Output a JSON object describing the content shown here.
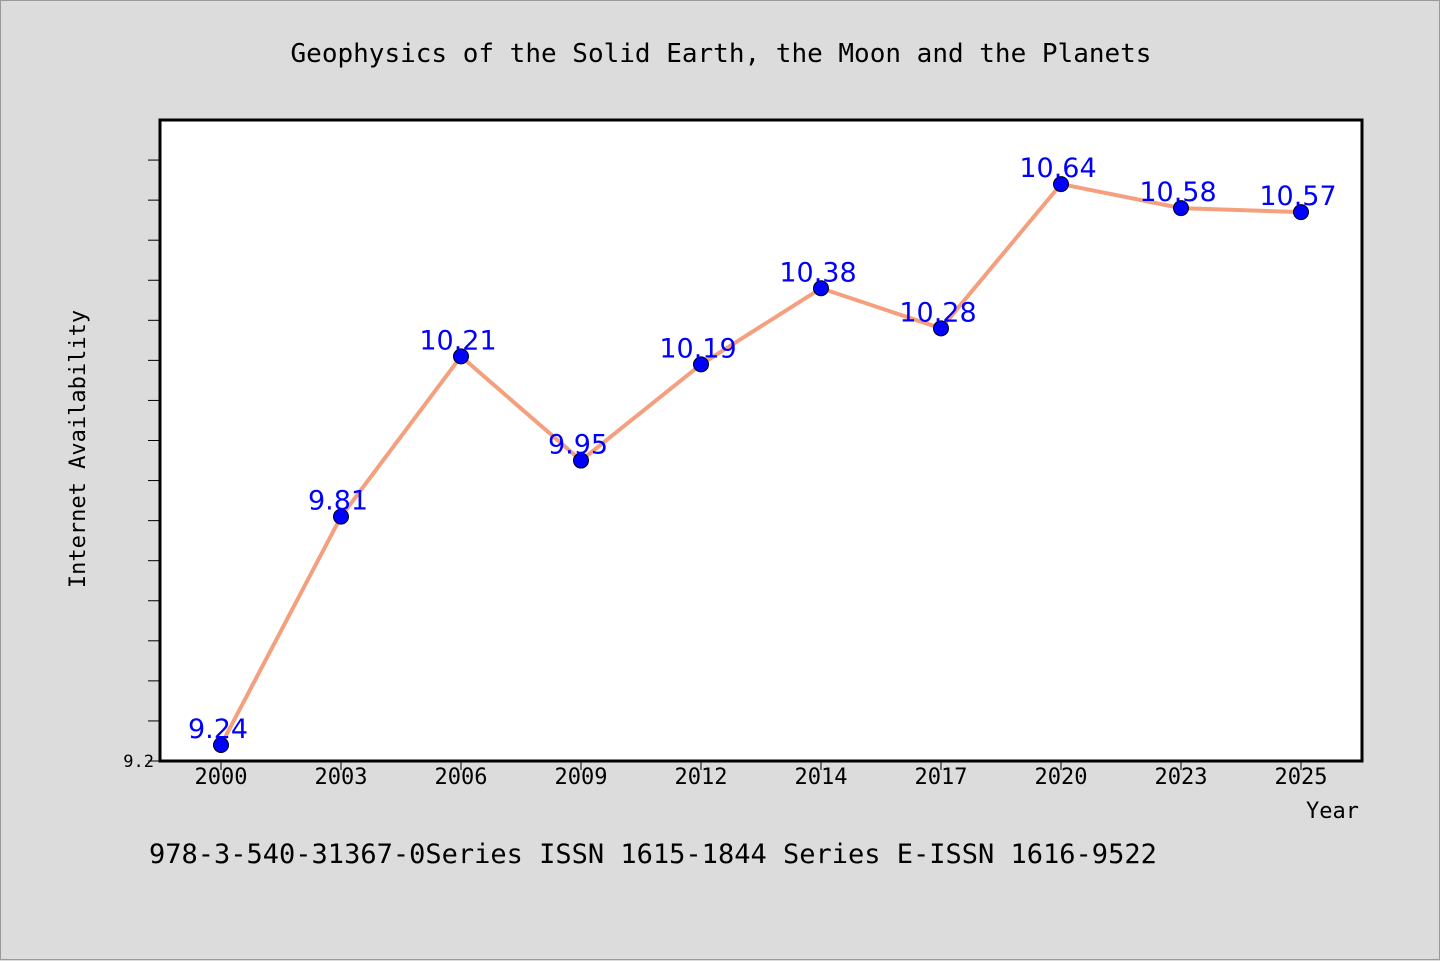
{
  "chart_data": {
    "type": "line",
    "title": "Geophysics of the Solid Earth, the Moon and the Planets",
    "xlabel": "Year",
    "ylabel": "Internet Availability",
    "categories": [
      "2000",
      "2003",
      "2006",
      "2009",
      "2012",
      "2014",
      "2017",
      "2020",
      "2023",
      "2025"
    ],
    "series": [
      {
        "values": [
          9.24,
          9.81,
          10.21,
          9.95,
          10.19,
          10.38,
          10.28,
          10.64,
          10.58,
          10.57
        ],
        "labels": [
          "9.24",
          "9.81",
          "10.21",
          "9.95",
          "10.19",
          "10.38",
          "10.28",
          "10.64",
          "10.58",
          "10.57"
        ],
        "line_color": "#f4a07e",
        "marker_color": "#0000ff"
      }
    ],
    "ylim": [
      9.2,
      10.8
    ],
    "yticks_labeled": [
      "9.2"
    ],
    "grid": false,
    "footer": "978-3-540-31367-0Series ISSN 1615-1844 Series E-ISSN 1616-9522"
  }
}
